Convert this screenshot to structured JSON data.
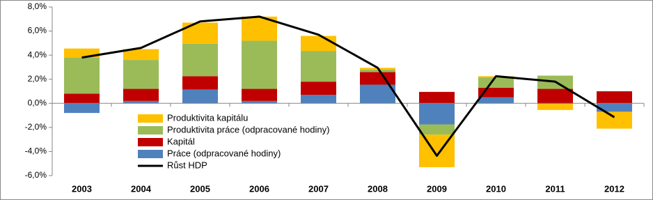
{
  "chart_data": {
    "type": "bar",
    "categories": [
      "2003",
      "2004",
      "2005",
      "2006",
      "2007",
      "2008",
      "2009",
      "2010",
      "2011",
      "2012"
    ],
    "series": [
      {
        "name": "Práce (odpracované hodiny)",
        "color": "#4f81bd",
        "values": [
          -0.8,
          0.2,
          1.15,
          0.2,
          0.7,
          1.55,
          -1.75,
          0.5,
          -0.05,
          -0.7
        ]
      },
      {
        "name": "Kapitál",
        "color": "#c00000",
        "values": [
          0.8,
          1.0,
          1.1,
          1.0,
          1.1,
          1.05,
          0.95,
          0.8,
          1.2,
          1.0
        ]
      },
      {
        "name": "Produktivita práce (odpracované hodiny)",
        "color": "#9bbb59",
        "values": [
          3.0,
          2.4,
          2.7,
          4.0,
          2.55,
          0.2,
          -0.85,
          0.85,
          1.1,
          0.0
        ]
      },
      {
        "name": "Produktivita kapitálu",
        "color": "#ffc000",
        "values": [
          0.75,
          0.9,
          1.75,
          2.0,
          1.25,
          0.15,
          -2.7,
          0.1,
          -0.5,
          -1.4
        ]
      },
      {
        "name": "Růst HDP",
        "color": "#000000",
        "type": "line",
        "values": [
          3.8,
          4.6,
          6.8,
          7.2,
          5.7,
          2.95,
          -4.35,
          2.25,
          1.8,
          -1.15
        ]
      }
    ],
    "ylim": [
      -6,
      8
    ],
    "yticks": [
      {
        "value": -6,
        "label": "-6,0%"
      },
      {
        "value": -4,
        "label": "-4,0%"
      },
      {
        "value": -2,
        "label": "-2,0%"
      },
      {
        "value": 0,
        "label": "0,0%"
      },
      {
        "value": 2,
        "label": "2,0%"
      },
      {
        "value": 4,
        "label": "4,0%"
      },
      {
        "value": 6,
        "label": "6,0%"
      },
      {
        "value": 8,
        "label": "8,0%"
      }
    ],
    "grid": false
  }
}
